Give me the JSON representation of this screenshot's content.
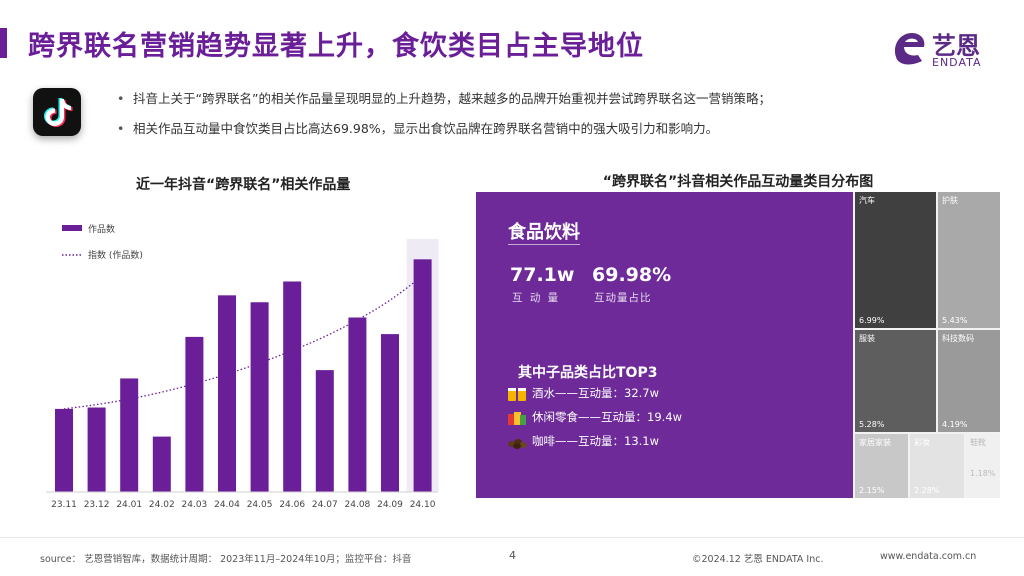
{
  "header": {
    "title": "跨界联名营销趋势显著上升，食饮类目占主导地位",
    "logo_cn": "艺恩",
    "logo_en": "ENDATA"
  },
  "bullets": [
    "抖音上关于“跨界联名”的相关作品量呈现明显的上升趋势，越来越多的品牌开始重视并尝试跨界联名这一营销策略；",
    "相关作品互动量中食饮类目占比高达69.98%，显示出食饮品牌在跨界联名营销中的强大吸引力和影响力。"
  ],
  "chart_data": [
    {
      "type": "bar",
      "title": "近一年抖音“跨界联名”相关作品量",
      "categories": [
        "23.11",
        "23.12",
        "24.01",
        "24.02",
        "24.03",
        "24.04",
        "24.05",
        "24.06",
        "24.07",
        "24.08",
        "24.09",
        "24.10"
      ],
      "series": [
        {
          "name": "作品数",
          "values": [
            30,
            30.5,
            41,
            20,
            56,
            71,
            68.5,
            76,
            44,
            63,
            57,
            84
          ]
        },
        {
          "name": "指数 (作品数)",
          "values": [
            30,
            31.5,
            33.5,
            36,
            39,
            42.5,
            46.5,
            51,
            56,
            62,
            69,
            78
          ]
        }
      ],
      "ylim": [
        0,
        100
      ],
      "highlight_category": "24.10",
      "legend": "top-left",
      "colors": {
        "bar": "#6a1f99",
        "trend": "#6a1f99",
        "highlight_band": "#eeebf5"
      }
    },
    {
      "type": "treemap",
      "title": "“跨界联名”抖音相关作品互动量类目分布图",
      "categories": [
        {
          "name": "食品饮料",
          "share": 69.98
        },
        {
          "name": "汽车",
          "share": 6.99
        },
        {
          "name": "护肤",
          "share": 5.43
        },
        {
          "name": "服装",
          "share": 5.28
        },
        {
          "name": "科技数码",
          "share": 4.19
        },
        {
          "name": "家居家装",
          "share": 2.15
        },
        {
          "name": "彩妆",
          "share": 2.28
        },
        {
          "name": "鞋靴",
          "share": 1.18
        }
      ],
      "main": {
        "name": "食品饮料",
        "value": "77.1w",
        "value_label": "互 动 量",
        "share": "69.98%",
        "share_label": "互动量占比"
      },
      "top3_title": "其中子品类占比TOP3",
      "top3": [
        "酒水——互动量：32.7w",
        "休闲零食——互动量：19.4w",
        "咖啡——互动量：13.1w"
      ],
      "colors": {
        "食品饮料": "#6d2a98",
        "汽车": "#404040",
        "护肤": "#a9a9a9",
        "服装": "#5e5e5e",
        "科技数码": "#9a9a9a",
        "家居家装": "#c8c8c8",
        "彩妆": "#e3e3e3",
        "鞋靴": "#f0f0f0"
      }
    }
  ],
  "footer": {
    "source": "source： 艺恩营销智库，数据统计周期： 2023年11月–2024年10月；监控平台：抖音",
    "page": "4",
    "copyright": "©2024.12 艺恩 ENDATA Inc.",
    "url": "www.endata.com.cn"
  }
}
